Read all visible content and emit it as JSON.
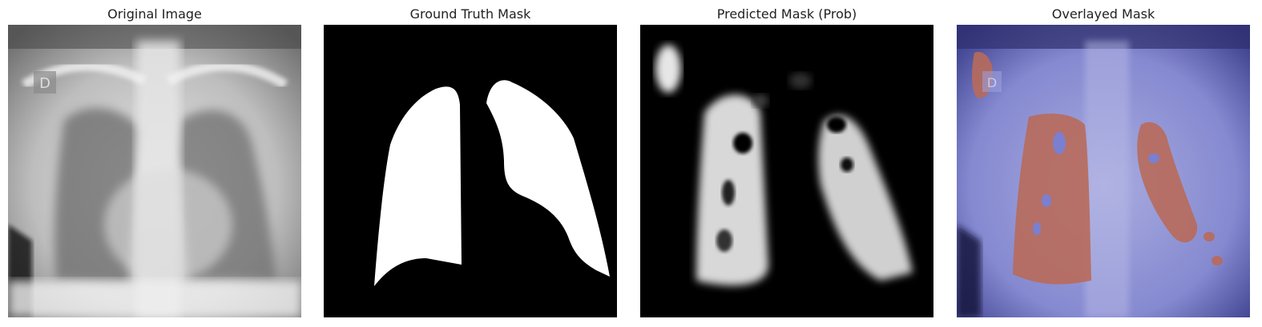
{
  "panels": [
    {
      "title": "Original Image",
      "kind": "xray"
    },
    {
      "title": "Ground Truth Mask",
      "kind": "mask"
    },
    {
      "title": "Predicted Mask (Prob)",
      "kind": "probability"
    },
    {
      "title": "Overlayed Mask",
      "kind": "overlay"
    }
  ],
  "image_text": {
    "marker": "D"
  },
  "colors": {
    "mask_fg": "#ffffff",
    "mask_bg": "#000000",
    "overlay_bg": "#7b7fd0",
    "overlay_fg": "#b86a5a"
  }
}
